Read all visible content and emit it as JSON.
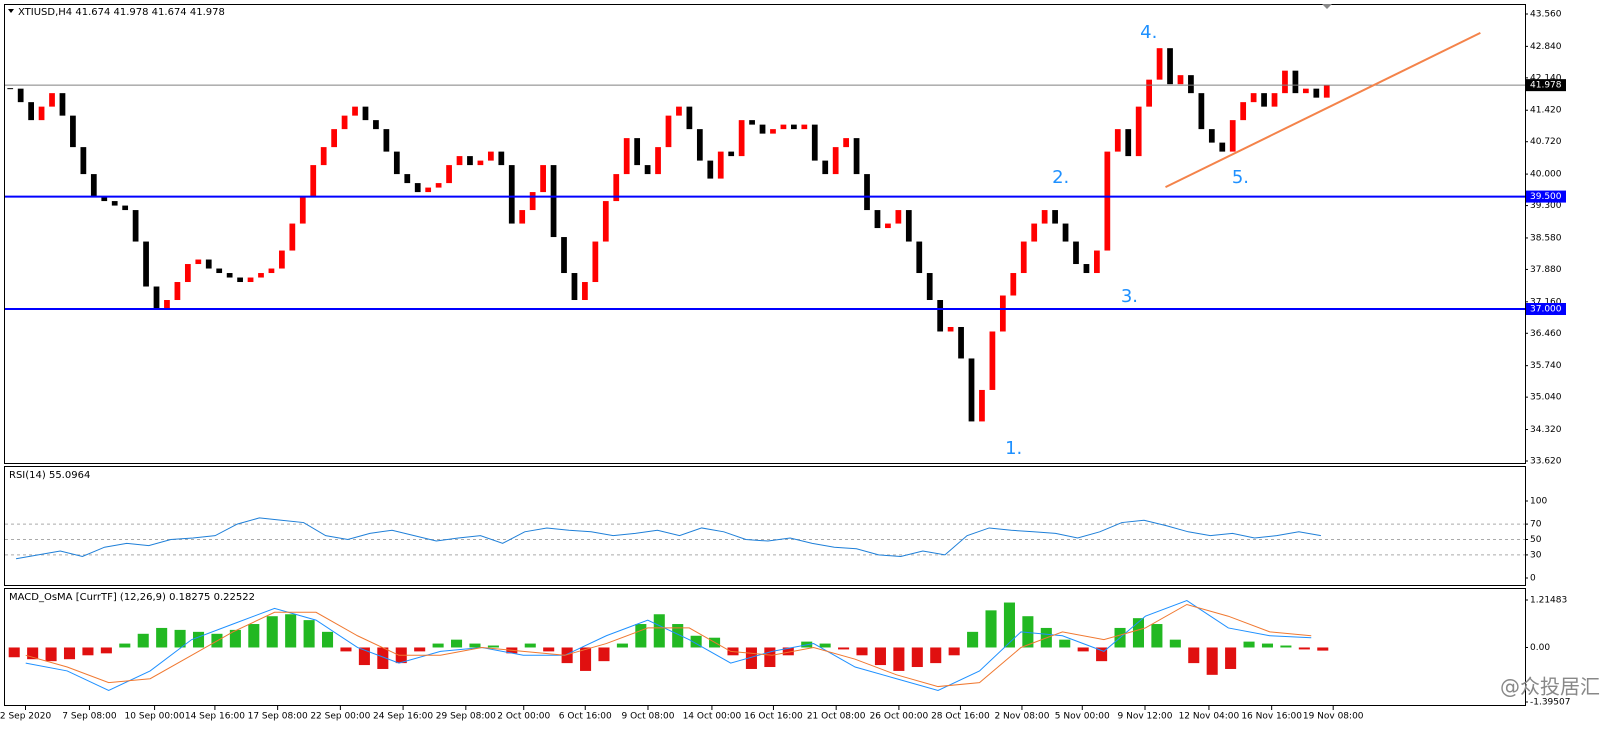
{
  "chart_data": [
    {
      "type": "candlestick",
      "title": "XTIUSD,H4  41.674 41.978 41.674 41.978",
      "closes": [
        41.9,
        41.6,
        41.2,
        41.5,
        41.8,
        41.3,
        40.6,
        40.0,
        39.5,
        39.4,
        39.3,
        39.2,
        38.5,
        37.5,
        37.0,
        37.2,
        37.6,
        38.0,
        38.1,
        37.9,
        37.8,
        37.7,
        37.6,
        37.7,
        37.8,
        37.9,
        38.3,
        38.9,
        39.5,
        40.2,
        40.6,
        41.0,
        41.3,
        41.5,
        41.2,
        41.0,
        40.5,
        40.0,
        39.8,
        39.6,
        39.7,
        39.8,
        40.2,
        40.4,
        40.2,
        40.3,
        40.5,
        40.2,
        38.9,
        39.2,
        39.6,
        40.2,
        38.6,
        37.8,
        37.2,
        37.6,
        38.5,
        39.4,
        40.0,
        40.8,
        40.2,
        40.0,
        40.6,
        41.3,
        41.5,
        41.0,
        40.3,
        39.9,
        40.5,
        40.4,
        41.2,
        41.1,
        40.9,
        41.0,
        41.1,
        41.0,
        41.1,
        40.3,
        40.0,
        40.6,
        40.8,
        40.0,
        39.2,
        38.8,
        38.9,
        39.2,
        38.5,
        37.8,
        37.2,
        36.5,
        36.6,
        35.9,
        34.5,
        35.2,
        36.5,
        37.3,
        37.8,
        38.5,
        38.9,
        39.2,
        38.9,
        38.5,
        38.0,
        37.8,
        38.3,
        40.5,
        41.0,
        40.4,
        41.5,
        42.1,
        42.8,
        42.0,
        42.2,
        41.8,
        41.0,
        40.7,
        40.5,
        41.2,
        41.6,
        41.8,
        41.5,
        41.8,
        42.3,
        41.8,
        41.9,
        41.7,
        41.978
      ],
      "up_color": "#ff0000",
      "down_color": "#000000",
      "xlim": [
        0,
        126
      ],
      "ylim": [
        33.62,
        43.56
      ],
      "yticks": [
        {
          "value": 33.62,
          "label": "33.620"
        },
        {
          "value": 34.32,
          "label": "34.320"
        },
        {
          "value": 35.04,
          "label": "35.040"
        },
        {
          "value": 35.74,
          "label": "35.740"
        },
        {
          "value": 36.46,
          "label": "36.460"
        },
        {
          "value": 37.16,
          "label": "37.160"
        },
        {
          "value": 37.88,
          "label": "37.880"
        },
        {
          "value": 38.58,
          "label": "38.580"
        },
        {
          "value": 39.3,
          "label": "39.300"
        },
        {
          "value": 40.0,
          "label": "40.000"
        },
        {
          "value": 40.72,
          "label": "40.720"
        },
        {
          "value": 41.42,
          "label": "41.420"
        },
        {
          "value": 42.14,
          "label": "42.140"
        },
        {
          "value": 42.84,
          "label": "42.840"
        },
        {
          "value": 43.56,
          "label": "43.560"
        }
      ],
      "hlines": [
        {
          "value": 41.978,
          "label": "41.978",
          "color": "#808080",
          "label_bg": "#000000"
        },
        {
          "value": 39.5,
          "label": "39.500",
          "color": "#0000ff",
          "label_bg": "#0000ff"
        },
        {
          "value": 37.0,
          "label": "37.000",
          "color": "#0000ff",
          "label_bg": "#0000ff"
        }
      ],
      "trendline": {
        "x": [
          96.2,
          122.3
        ],
        "y": [
          39.71,
          43.14
        ],
        "color": "#f4834a"
      },
      "annotations": [
        {
          "text": "1.",
          "x": 82.9,
          "y": 33.89
        },
        {
          "text": "2.",
          "x": 86.8,
          "y": 39.91
        },
        {
          "text": "3.",
          "x": 92.5,
          "y": 37.27
        },
        {
          "text": "4.",
          "x": 94.1,
          "y": 43.14
        },
        {
          "text": "5.",
          "x": 101.7,
          "y": 39.91
        }
      ],
      "annotation_color": "#1e90ff",
      "xticks": [
        {
          "value": 1.7,
          "label": "2 Sep 2020"
        },
        {
          "value": 7.0,
          "label": "7 Sep 08:00"
        },
        {
          "value": 12.4,
          "label": "10 Sep 00:00"
        },
        {
          "value": 17.4,
          "label": "14 Sep 16:00"
        },
        {
          "value": 22.6,
          "label": "17 Sep 08:00"
        },
        {
          "value": 27.8,
          "label": "22 Sep 00:00"
        },
        {
          "value": 33.0,
          "label": "24 Sep 16:00"
        },
        {
          "value": 38.2,
          "label": "29 Sep 08:00"
        },
        {
          "value": 43.0,
          "label": "2 Oct 00:00"
        },
        {
          "value": 48.1,
          "label": "6 Oct 16:00"
        },
        {
          "value": 53.3,
          "label": "9 Oct 08:00"
        },
        {
          "value": 58.6,
          "label": "14 Oct 00:00"
        },
        {
          "value": 63.7,
          "label": "16 Oct 16:00"
        },
        {
          "value": 68.9,
          "label": "21 Oct 08:00"
        },
        {
          "value": 74.1,
          "label": "26 Oct 00:00"
        },
        {
          "value": 79.2,
          "label": "28 Oct 16:00"
        },
        {
          "value": 84.3,
          "label": "2 Nov 08:00"
        },
        {
          "value": 89.3,
          "label": "5 Nov 00:00"
        },
        {
          "value": 94.5,
          "label": "9 Nov 12:00"
        },
        {
          "value": 99.8,
          "label": "12 Nov 04:00"
        },
        {
          "value": 105.0,
          "label": "16 Nov 16:00"
        },
        {
          "value": 110.1,
          "label": "19 Nov 08:00"
        }
      ]
    },
    {
      "type": "line",
      "title": "RSI(14) 55.0964",
      "color": "#1e7fd8",
      "xlim": [
        0,
        126
      ],
      "ylim": [
        0,
        100
      ],
      "yticks": [
        0,
        30,
        50,
        70,
        100
      ],
      "levels": [
        30,
        50,
        70
      ],
      "values": [
        25,
        30,
        35,
        28,
        40,
        45,
        42,
        50,
        52,
        55,
        70,
        78,
        75,
        72,
        55,
        50,
        58,
        62,
        55,
        48,
        52,
        55,
        45,
        60,
        65,
        62,
        60,
        55,
        58,
        62,
        55,
        65,
        60,
        50,
        48,
        52,
        45,
        40,
        38,
        30,
        28,
        35,
        30,
        55,
        65,
        62,
        60,
        58,
        52,
        60,
        72,
        75,
        68,
        60,
        55,
        58,
        52,
        55,
        60,
        55
      ]
    },
    {
      "type": "macd",
      "title": "MACD_OsMA [CurrTF] (12,26,9) 0.18275 0.22522",
      "xlim": [
        0,
        126
      ],
      "ylim": [
        -1.39507,
        1.21483
      ],
      "yticks": [
        {
          "value": -1.39507,
          "label": "-1.39507"
        },
        {
          "value": 0,
          "label": "0.00"
        },
        {
          "value": 1.21483,
          "label": "1.21483"
        }
      ],
      "histogram": [
        -0.25,
        -0.3,
        -0.35,
        -0.3,
        -0.2,
        -0.15,
        0.1,
        0.35,
        0.5,
        0.45,
        0.4,
        0.35,
        0.45,
        0.6,
        0.8,
        0.85,
        0.7,
        0.4,
        -0.1,
        -0.45,
        -0.55,
        -0.4,
        -0.1,
        0.1,
        0.2,
        0.1,
        0.05,
        -0.15,
        0.1,
        -0.1,
        -0.4,
        -0.6,
        -0.35,
        0.1,
        0.6,
        0.85,
        0.6,
        0.3,
        0.25,
        -0.2,
        -0.55,
        -0.5,
        -0.2,
        0.15,
        0.1,
        -0.05,
        -0.2,
        -0.45,
        -0.6,
        -0.5,
        -0.4,
        -0.2,
        0.4,
        0.95,
        1.15,
        0.8,
        0.5,
        0.2,
        -0.1,
        -0.35,
        0.5,
        0.75,
        0.6,
        0.2,
        -0.4,
        -0.7,
        -0.55,
        0.15,
        0.1,
        0.05,
        -0.05,
        -0.08
      ],
      "pos_color": "#22b822",
      "neg_color": "#e01010",
      "series": [
        {
          "color": "#1e90ff",
          "values": [
            -0.4,
            -0.6,
            -1.1,
            -0.6,
            0.2,
            0.6,
            1.0,
            0.7,
            0.0,
            -0.4,
            -0.1,
            0.0,
            -0.2,
            -0.2,
            0.3,
            0.7,
            0.2,
            -0.4,
            -0.1,
            0.1,
            -0.5,
            -0.8,
            -1.1,
            -0.6,
            0.4,
            0.3,
            -0.1,
            0.8,
            1.2,
            0.5,
            0.3,
            0.25
          ]
        },
        {
          "color": "#f07830",
          "values": [
            -0.2,
            -0.5,
            -0.9,
            -0.8,
            -0.2,
            0.4,
            0.9,
            0.9,
            0.3,
            -0.2,
            -0.2,
            0.0,
            -0.1,
            -0.2,
            0.1,
            0.5,
            0.5,
            -0.1,
            -0.2,
            0.0,
            -0.3,
            -0.7,
            -1.0,
            -0.9,
            0.0,
            0.4,
            0.2,
            0.5,
            1.1,
            0.8,
            0.4,
            0.3
          ]
        }
      ]
    }
  ],
  "watermark": "@众投居汇"
}
